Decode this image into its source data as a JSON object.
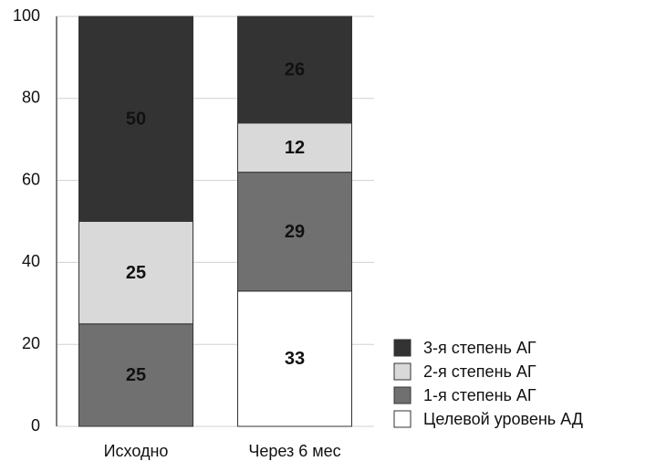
{
  "chart_data": {
    "type": "stacked_bar",
    "categories": [
      "Исходно",
      "Через 6 мес"
    ],
    "series": [
      {
        "name": "Целевой уровень АД",
        "color": "#ffffff",
        "values": [
          0,
          33
        ]
      },
      {
        "name": "1-я степень АГ",
        "color": "#707070",
        "values": [
          25,
          29
        ]
      },
      {
        "name": "2-я степень АГ",
        "color": "#d9d9d9",
        "values": [
          25,
          12
        ]
      },
      {
        "name": "3-я степень АГ",
        "color": "#333333",
        "values": [
          50,
          26
        ]
      }
    ],
    "ylim": [
      0,
      100
    ],
    "yticks": [
      0,
      20,
      40,
      60,
      80,
      100
    ],
    "grid": true,
    "legend": "lower right"
  }
}
